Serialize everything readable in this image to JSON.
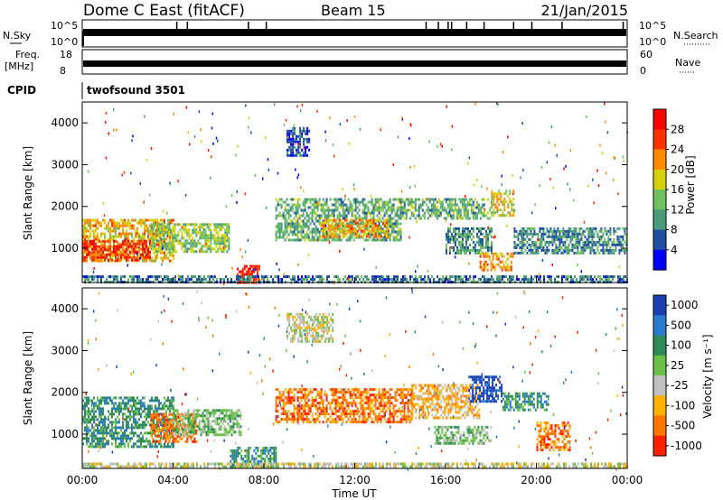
{
  "header": {
    "station": "Dome C East (fitACF)",
    "beam": "Beam 15",
    "date": "21/Jan/2015"
  },
  "top_panels": {
    "nsky_label": "N.Sky",
    "nsky_ticks": [
      "10^5",
      "10^0"
    ],
    "nsearch_label": "N.Search",
    "nsearch_ticks": [
      "10^5",
      "10^0"
    ],
    "freq_label": "Freq.",
    "freq_unit": "[MHz]",
    "freq_ticks": [
      "18",
      "8"
    ],
    "nave_label": "Nave",
    "nave_ticks": [
      "60",
      "0"
    ],
    "cpid_label": "CPID",
    "cpid_value": "twofsound 3501"
  },
  "chart_data": [
    {
      "type": "heatmap",
      "parameter": "Power",
      "ylabel": "Slant Range [km]",
      "ylim": [
        180,
        4500
      ],
      "yticks": [
        1000,
        2000,
        3000,
        4000
      ],
      "xlim": [
        0,
        24
      ],
      "colorbar": {
        "label": "Power [dB]",
        "range": [
          0,
          32
        ],
        "ticks": [
          "4",
          "8",
          "12",
          "16",
          "20",
          "24",
          "28"
        ],
        "colors": [
          "#0000ff",
          "#1f4fa0",
          "#4b9a7a",
          "#6fc060",
          "#d4d010",
          "#ff8a00",
          "#ff3300",
          "#ff0000"
        ]
      },
      "regions": [
        {
          "t": [
            0.0,
            4.0
          ],
          "r": [
            700,
            1700
          ],
          "level": 20
        },
        {
          "t": [
            0.0,
            3.0
          ],
          "r": [
            700,
            1200
          ],
          "level": 26
        },
        {
          "t": [
            3.0,
            6.5
          ],
          "r": [
            900,
            1600
          ],
          "level": 15
        },
        {
          "t": [
            6.8,
            7.8
          ],
          "r": [
            200,
            600
          ],
          "level": 28
        },
        {
          "t": [
            9.0,
            10.0
          ],
          "r": [
            3200,
            3900
          ],
          "level": 6
        },
        {
          "t": [
            8.5,
            14.0
          ],
          "r": [
            1200,
            2200
          ],
          "level": 12
        },
        {
          "t": [
            10.5,
            13.5
          ],
          "r": [
            1300,
            1700
          ],
          "level": 21
        },
        {
          "t": [
            14.0,
            18.0
          ],
          "r": [
            1700,
            2200
          ],
          "level": 12
        },
        {
          "t": [
            16.0,
            18.0
          ],
          "r": [
            900,
            1500
          ],
          "level": 10
        },
        {
          "t": [
            17.5,
            19.0
          ],
          "r": [
            500,
            900
          ],
          "level": 22
        },
        {
          "t": [
            18.0,
            19.0
          ],
          "r": [
            1800,
            2400
          ],
          "level": 18
        },
        {
          "t": [
            19.0,
            24.0
          ],
          "r": [
            900,
            1500
          ],
          "level": 9
        },
        {
          "t": [
            0.0,
            24.0
          ],
          "r": [
            200,
            350
          ],
          "level": 8
        }
      ]
    },
    {
      "type": "heatmap",
      "parameter": "Velocity",
      "ylabel": "Slant Range [km]",
      "xlabel": "Time UT",
      "ylim": [
        180,
        4500
      ],
      "yticks": [
        1000,
        2000,
        3000,
        4000
      ],
      "xlim": [
        0,
        24
      ],
      "xticks": [
        "00:00",
        "04:00",
        "08:00",
        "12:00",
        "16:00",
        "20:00",
        "00:00"
      ],
      "colorbar": {
        "label": "Velocity [m s⁻¹]",
        "ticks": [
          "1000",
          "500",
          "100",
          "25",
          "-25",
          "-100",
          "-500",
          "-1000"
        ],
        "colors": [
          "#1a3fb0",
          "#2a7ad0",
          "#2e8b57",
          "#6cc04a",
          "#c0c0c0",
          "#ffb000",
          "#ff7700",
          "#ff2000"
        ]
      },
      "regions": [
        {
          "t": [
            0.0,
            4.0
          ],
          "r": [
            700,
            1900
          ],
          "level": 2
        },
        {
          "t": [
            3.0,
            5.0
          ],
          "r": [
            800,
            1500
          ],
          "level": 6
        },
        {
          "t": [
            4.0,
            7.0
          ],
          "r": [
            1000,
            1600
          ],
          "level": 3
        },
        {
          "t": [
            6.5,
            8.5
          ],
          "r": [
            200,
            700
          ],
          "level": 2
        },
        {
          "t": [
            9.0,
            11.0
          ],
          "r": [
            3200,
            3900
          ],
          "level": 4
        },
        {
          "t": [
            8.5,
            14.5
          ],
          "r": [
            1300,
            2100
          ],
          "level": 6
        },
        {
          "t": [
            14.5,
            17.5
          ],
          "r": [
            1400,
            2200
          ],
          "level": 5
        },
        {
          "t": [
            15.5,
            18.0
          ],
          "r": [
            800,
            1200
          ],
          "level": 3
        },
        {
          "t": [
            17.0,
            18.5
          ],
          "r": [
            1800,
            2400
          ],
          "level": 0
        },
        {
          "t": [
            18.5,
            20.5
          ],
          "r": [
            1600,
            2000
          ],
          "level": 2
        },
        {
          "t": [
            20.0,
            21.5
          ],
          "r": [
            600,
            1300
          ],
          "level": 6
        },
        {
          "t": [
            0.0,
            24.0
          ],
          "r": [
            200,
            320
          ],
          "level": 4
        }
      ]
    }
  ]
}
